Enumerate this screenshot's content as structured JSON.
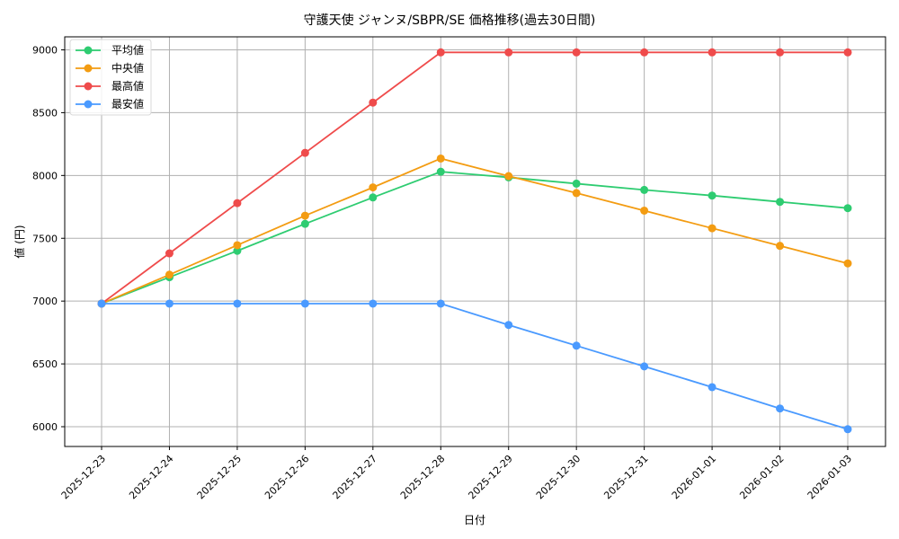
{
  "chart_data": {
    "type": "line",
    "title": "守護天使 ジャンヌ/SBPR/SE 価格推移(過去30日間)",
    "xlabel": "日付",
    "ylabel": "値 (円)",
    "categories": [
      "2025-12-23",
      "2025-12-24",
      "2025-12-25",
      "2025-12-26",
      "2025-12-27",
      "2025-12-28",
      "2025-12-29",
      "2025-12-30",
      "2025-12-31",
      "2026-01-01",
      "2026-01-02",
      "2026-01-03"
    ],
    "series": [
      {
        "name": "平均値",
        "color": "#2ecc71",
        "values": [
          6980,
          7190,
          7400,
          7615,
          7825,
          8030,
          7985,
          7935,
          7885,
          7840,
          7790,
          7740
        ]
      },
      {
        "name": "中央値",
        "color": "#f39c12",
        "values": [
          6980,
          7210,
          7445,
          7680,
          7905,
          8135,
          7995,
          7860,
          7720,
          7580,
          7440,
          7300
        ]
      },
      {
        "name": "最高値",
        "color": "#ef4b4b",
        "values": [
          6980,
          7380,
          7780,
          8180,
          8580,
          8980,
          8980,
          8980,
          8980,
          8980,
          8980,
          8980
        ]
      },
      {
        "name": "最安値",
        "color": "#4a9aff",
        "values": [
          6980,
          6980,
          6980,
          6980,
          6980,
          6980,
          6810,
          6645,
          6480,
          6315,
          6145,
          5980
        ]
      }
    ],
    "yticks": [
      6000,
      6500,
      7000,
      7500,
      8000,
      8500,
      9000
    ],
    "ylim": [
      5840,
      9110
    ],
    "grid": true,
    "legend_position": "upper left"
  }
}
